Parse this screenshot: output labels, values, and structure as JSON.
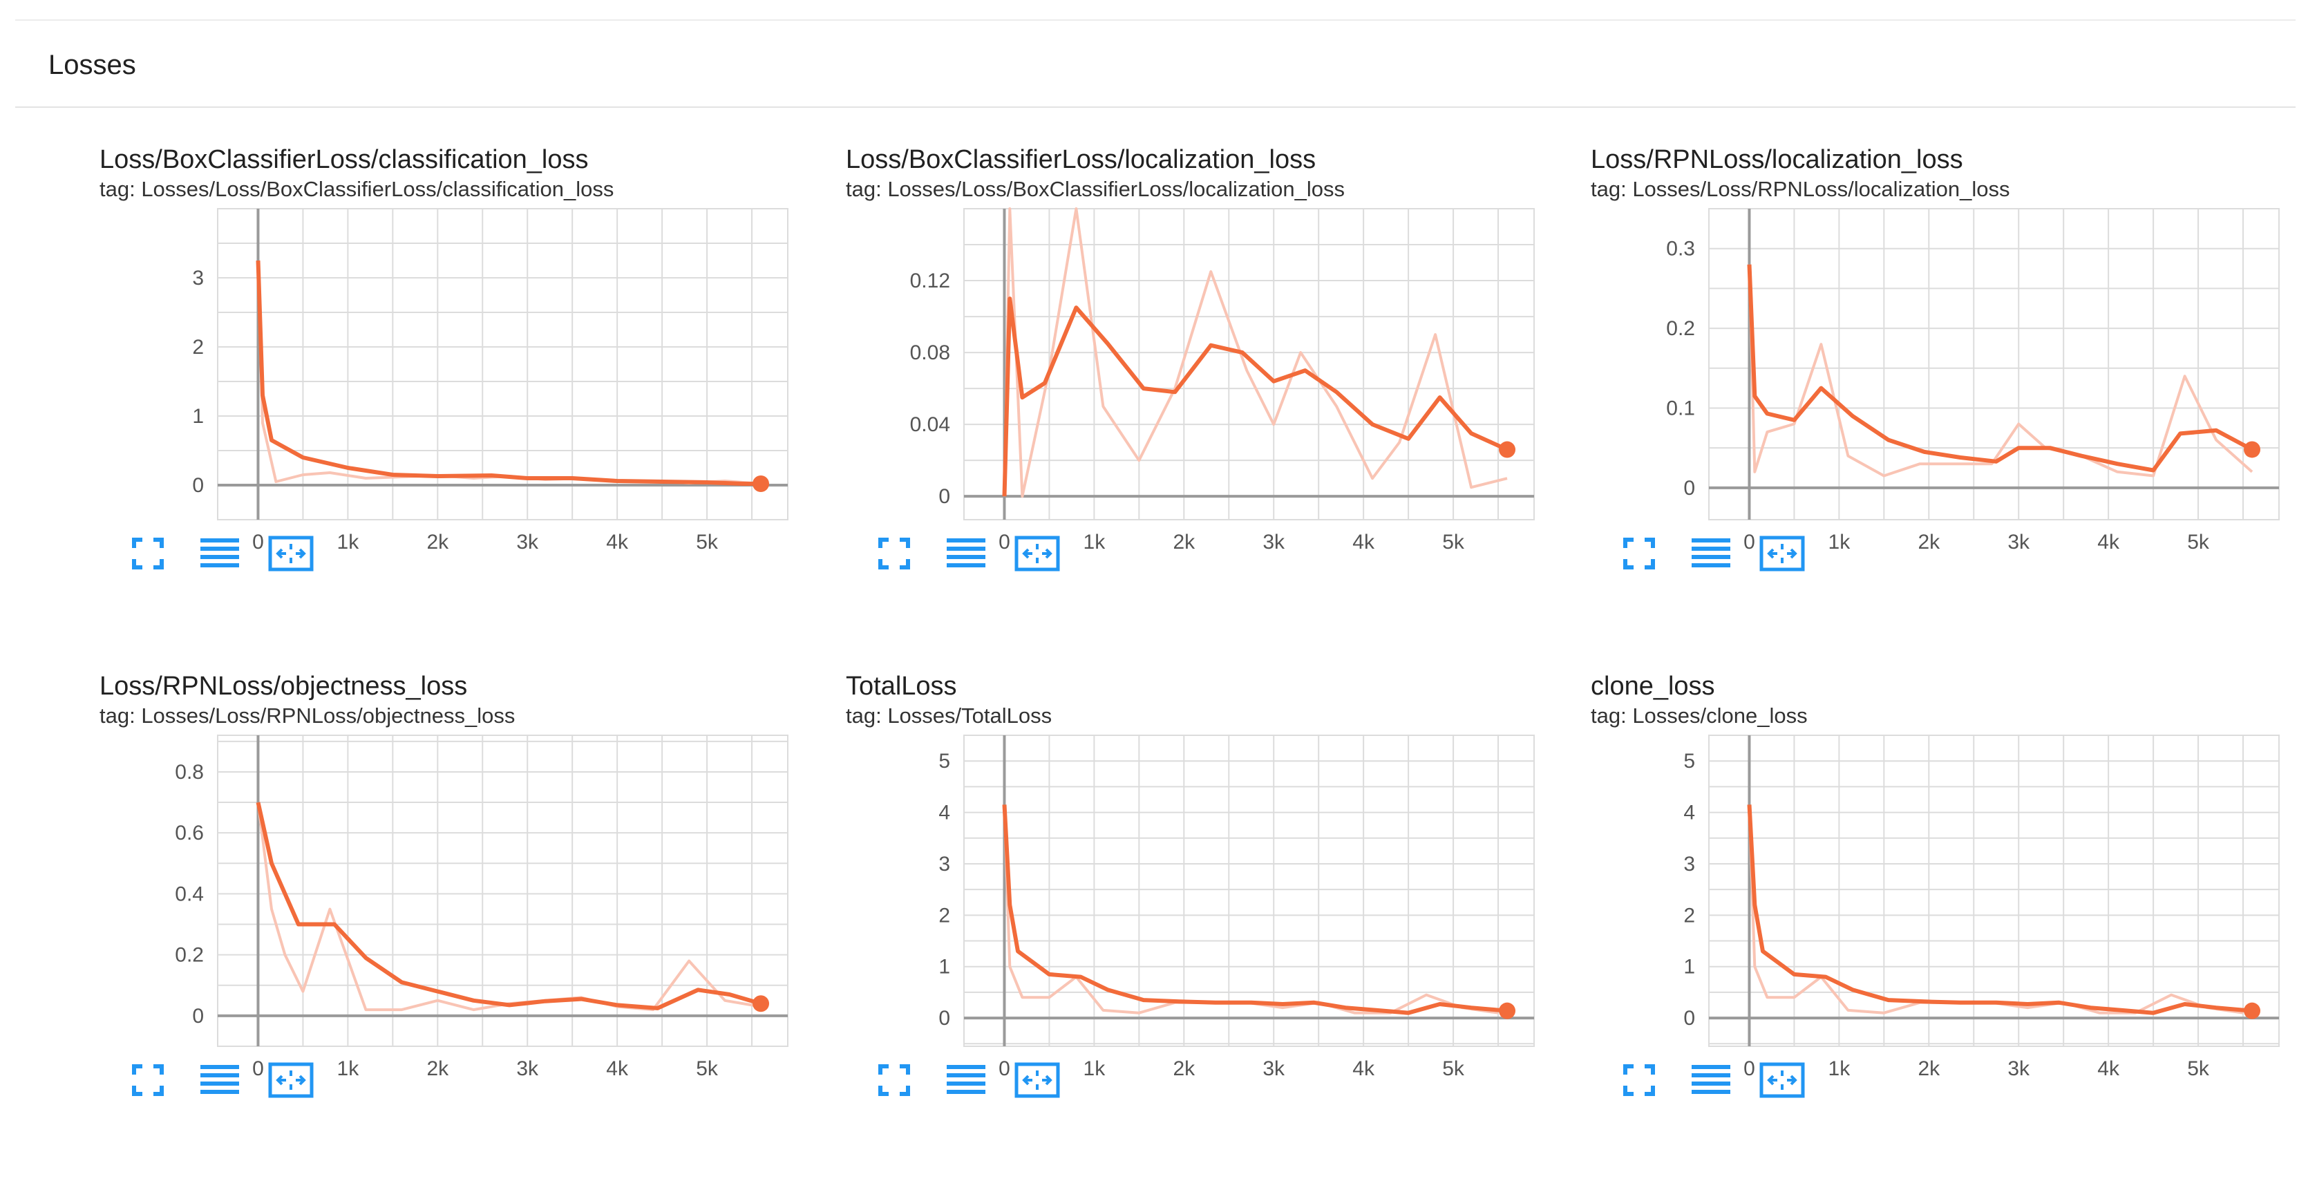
{
  "section": {
    "title": "Losses"
  },
  "colors": {
    "smoothed": "#f26b3a",
    "raw": "#f9c4b4",
    "grid": "#dcdcdc",
    "axis": "#9a9a9a",
    "icon": "#2196f3"
  },
  "toolbar_icons": [
    "fullscreen-icon",
    "data-table-icon",
    "fit-domain-icon"
  ],
  "cards": [
    {
      "title": "Loss/BoxClassifierLoss/classification_loss",
      "tag": "tag: Losses/Loss/BoxClassifierLoss/classification_loss",
      "chart_data": {
        "type": "line",
        "xlim": [
          -450,
          5900
        ],
        "ylim": [
          -0.5,
          4.0
        ],
        "xticks": [
          0,
          1000,
          2000,
          3000,
          4000,
          5000
        ],
        "xtick_labels": [
          "0",
          "1k",
          "2k",
          "3k",
          "4k",
          "5k"
        ],
        "yticks": [
          0,
          1,
          2,
          3
        ],
        "ytick_labels": [
          "0",
          "1",
          "2",
          "3"
        ],
        "grid": true,
        "series": [
          {
            "role": "raw",
            "x": [
              0,
              50,
              200,
              500,
              800,
              1200,
              1600,
              2000,
              2400,
              2800,
              3200,
              3600,
              4000,
              4400,
              4800,
              5200,
              5600
            ],
            "y": [
              3.2,
              0.9,
              0.05,
              0.15,
              0.18,
              0.1,
              0.12,
              0.14,
              0.1,
              0.13,
              0.08,
              0.1,
              0.05,
              0.06,
              0.03,
              0.06,
              0.02
            ]
          },
          {
            "role": "smoothed",
            "x": [
              0,
              50,
              150,
              500,
              1000,
              1500,
              2000,
              2600,
              3000,
              3500,
              4000,
              4500,
              5000,
              5400,
              5600
            ],
            "y": [
              3.25,
              1.3,
              0.65,
              0.4,
              0.25,
              0.15,
              0.13,
              0.14,
              0.1,
              0.1,
              0.06,
              0.05,
              0.04,
              0.02,
              0.02
            ]
          }
        ]
      }
    },
    {
      "title": "Loss/BoxClassifierLoss/localization_loss",
      "tag": "tag: Losses/Loss/BoxClassifierLoss/localization_loss",
      "chart_data": {
        "type": "line",
        "xlim": [
          -450,
          5900
        ],
        "ylim": [
          -0.013,
          0.16
        ],
        "xticks": [
          0,
          1000,
          2000,
          3000,
          4000,
          5000
        ],
        "xtick_labels": [
          "0",
          "1k",
          "2k",
          "3k",
          "4k",
          "5k"
        ],
        "yticks": [
          0,
          0.04,
          0.08,
          0.12
        ],
        "ytick_labels": [
          "0",
          "0.04",
          "0.08",
          "0.12"
        ],
        "grid": true,
        "series": [
          {
            "role": "raw",
            "x": [
              0,
              60,
              200,
              500,
              800,
              1100,
              1500,
              1900,
              2300,
              2700,
              3000,
              3300,
              3700,
              4100,
              4400,
              4800,
              5200,
              5600
            ],
            "y": [
              0.0,
              0.16,
              0.0,
              0.07,
              0.16,
              0.05,
              0.02,
              0.06,
              0.125,
              0.07,
              0.04,
              0.08,
              0.05,
              0.01,
              0.03,
              0.09,
              0.005,
              0.01
            ]
          },
          {
            "role": "smoothed",
            "x": [
              0,
              60,
              200,
              450,
              800,
              1150,
              1550,
              1900,
              2300,
              2650,
              3000,
              3350,
              3700,
              4100,
              4500,
              4850,
              5200,
              5600
            ],
            "y": [
              0.0,
              0.11,
              0.055,
              0.063,
              0.105,
              0.085,
              0.06,
              0.058,
              0.084,
              0.08,
              0.064,
              0.07,
              0.058,
              0.04,
              0.032,
              0.055,
              0.035,
              0.026
            ]
          }
        ]
      }
    },
    {
      "title": "Loss/RPNLoss/localization_loss",
      "tag": "tag: Losses/Loss/RPNLoss/localization_loss",
      "chart_data": {
        "type": "line",
        "xlim": [
          -450,
          5900
        ],
        "ylim": [
          -0.04,
          0.35
        ],
        "xticks": [
          0,
          1000,
          2000,
          3000,
          4000,
          5000
        ],
        "xtick_labels": [
          "0",
          "1k",
          "2k",
          "3k",
          "4k",
          "5k"
        ],
        "yticks": [
          0,
          0.1,
          0.2,
          0.3
        ],
        "ytick_labels": [
          "0",
          "0.1",
          "0.2",
          "0.3"
        ],
        "grid": true,
        "series": [
          {
            "role": "raw",
            "x": [
              0,
              60,
              200,
              500,
              800,
              1100,
              1500,
              1900,
              2300,
              2700,
              3000,
              3300,
              3700,
              4100,
              4500,
              4850,
              5200,
              5600
            ],
            "y": [
              0.28,
              0.02,
              0.07,
              0.08,
              0.18,
              0.04,
              0.015,
              0.03,
              0.03,
              0.03,
              0.08,
              0.05,
              0.04,
              0.02,
              0.015,
              0.14,
              0.06,
              0.02
            ]
          },
          {
            "role": "smoothed",
            "x": [
              0,
              60,
              200,
              500,
              800,
              1150,
              1550,
              1950,
              2350,
              2750,
              3000,
              3350,
              3700,
              4100,
              4500,
              4800,
              5200,
              5600
            ],
            "y": [
              0.28,
              0.115,
              0.093,
              0.085,
              0.125,
              0.09,
              0.06,
              0.045,
              0.038,
              0.033,
              0.05,
              0.05,
              0.04,
              0.03,
              0.022,
              0.068,
              0.072,
              0.048
            ]
          }
        ]
      }
    },
    {
      "title": "Loss/RPNLoss/objectness_loss",
      "tag": "tag: Losses/Loss/RPNLoss/objectness_loss",
      "chart_data": {
        "type": "line",
        "xlim": [
          -450,
          5900
        ],
        "ylim": [
          -0.1,
          0.92
        ],
        "xticks": [
          0,
          1000,
          2000,
          3000,
          4000,
          5000
        ],
        "xtick_labels": [
          "0",
          "1k",
          "2k",
          "3k",
          "4k",
          "5k"
        ],
        "yticks": [
          0,
          0.2,
          0.4,
          0.6,
          0.8
        ],
        "ytick_labels": [
          "0",
          "0.2",
          "0.4",
          "0.6",
          "0.8"
        ],
        "grid": true,
        "series": [
          {
            "role": "raw",
            "x": [
              0,
              150,
              300,
              500,
              800,
              1200,
              1600,
              2000,
              2400,
              2800,
              3200,
              3600,
              4000,
              4400,
              4800,
              5200,
              5600
            ],
            "y": [
              0.7,
              0.35,
              0.2,
              0.08,
              0.35,
              0.02,
              0.02,
              0.05,
              0.02,
              0.04,
              0.05,
              0.06,
              0.03,
              0.02,
              0.18,
              0.05,
              0.03
            ]
          },
          {
            "role": "smoothed",
            "x": [
              0,
              150,
              450,
              850,
              1200,
              1600,
              2000,
              2400,
              2800,
              3200,
              3600,
              4000,
              4450,
              4900,
              5250,
              5600
            ],
            "y": [
              0.7,
              0.5,
              0.3,
              0.3,
              0.19,
              0.11,
              0.08,
              0.05,
              0.035,
              0.048,
              0.055,
              0.035,
              0.025,
              0.085,
              0.07,
              0.04
            ]
          }
        ]
      }
    },
    {
      "title": "TotalLoss",
      "tag": "tag: Losses/TotalLoss",
      "chart_data": {
        "type": "line",
        "xlim": [
          -450,
          5900
        ],
        "ylim": [
          -0.55,
          5.5
        ],
        "xticks": [
          0,
          1000,
          2000,
          3000,
          4000,
          5000
        ],
        "xtick_labels": [
          "0",
          "1k",
          "2k",
          "3k",
          "4k",
          "5k"
        ],
        "yticks": [
          0,
          1,
          2,
          3,
          4,
          5
        ],
        "ytick_labels": [
          "0",
          "1",
          "2",
          "3",
          "4",
          "5"
        ],
        "grid": true,
        "series": [
          {
            "role": "raw",
            "x": [
              0,
              60,
              200,
              500,
              800,
              1100,
              1500,
              1900,
              2300,
              2700,
              3100,
              3500,
              3900,
              4300,
              4700,
              5100,
              5500
            ],
            "y": [
              4.1,
              1.0,
              0.4,
              0.4,
              0.8,
              0.15,
              0.1,
              0.3,
              0.3,
              0.3,
              0.2,
              0.3,
              0.1,
              0.1,
              0.45,
              0.2,
              0.1
            ]
          },
          {
            "role": "smoothed",
            "x": [
              0,
              60,
              150,
              500,
              850,
              1150,
              1550,
              1950,
              2350,
              2750,
              3100,
              3450,
              3800,
              4150,
              4500,
              4850,
              5200,
              5600
            ],
            "y": [
              4.15,
              2.2,
              1.3,
              0.85,
              0.8,
              0.55,
              0.35,
              0.32,
              0.3,
              0.3,
              0.27,
              0.3,
              0.2,
              0.15,
              0.1,
              0.27,
              0.2,
              0.14
            ]
          }
        ]
      }
    },
    {
      "title": "clone_loss",
      "tag": "tag: Losses/clone_loss",
      "chart_data": {
        "type": "line",
        "xlim": [
          -450,
          5900
        ],
        "ylim": [
          -0.55,
          5.5
        ],
        "xticks": [
          0,
          1000,
          2000,
          3000,
          4000,
          5000
        ],
        "xtick_labels": [
          "0",
          "1k",
          "2k",
          "3k",
          "4k",
          "5k"
        ],
        "yticks": [
          0,
          1,
          2,
          3,
          4,
          5
        ],
        "ytick_labels": [
          "0",
          "1",
          "2",
          "3",
          "4",
          "5"
        ],
        "grid": true,
        "series": [
          {
            "role": "raw",
            "x": [
              0,
              60,
              200,
              500,
              800,
              1100,
              1500,
              1900,
              2300,
              2700,
              3100,
              3500,
              3900,
              4300,
              4700,
              5100,
              5500
            ],
            "y": [
              4.1,
              1.0,
              0.4,
              0.4,
              0.8,
              0.15,
              0.1,
              0.3,
              0.3,
              0.3,
              0.2,
              0.3,
              0.1,
              0.1,
              0.45,
              0.2,
              0.1
            ]
          },
          {
            "role": "smoothed",
            "x": [
              0,
              60,
              150,
              500,
              850,
              1150,
              1550,
              1950,
              2350,
              2750,
              3100,
              3450,
              3800,
              4150,
              4500,
              4850,
              5200,
              5600
            ],
            "y": [
              4.15,
              2.2,
              1.3,
              0.85,
              0.8,
              0.55,
              0.35,
              0.32,
              0.3,
              0.3,
              0.27,
              0.3,
              0.2,
              0.15,
              0.1,
              0.27,
              0.2,
              0.14
            ]
          }
        ]
      }
    }
  ]
}
